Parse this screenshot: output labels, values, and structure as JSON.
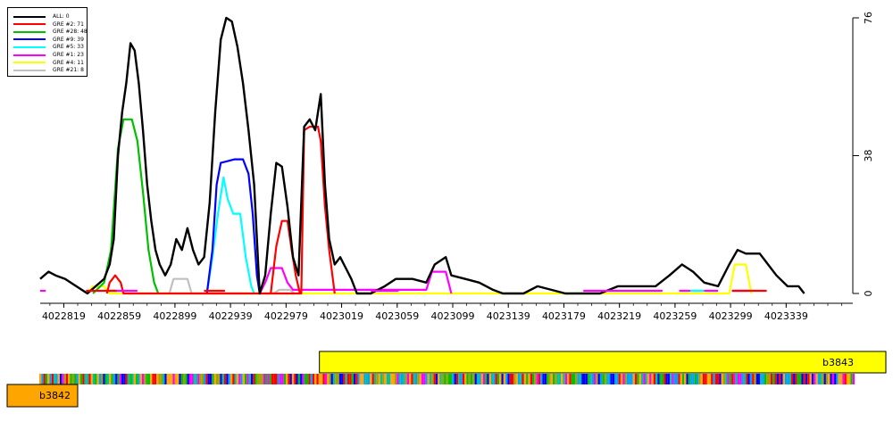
{
  "chart_data": {
    "type": "line",
    "xlim": [
      4022802,
      4023387
    ],
    "ylim": [
      0,
      76
    ],
    "x_ticks": [
      4022819,
      4022859,
      4022899,
      4022939,
      4022979,
      4023019,
      4023059,
      4023099,
      4023139,
      4023179,
      4023219,
      4023259,
      4023299,
      4023339
    ],
    "y_ticks": [
      0,
      38,
      76
    ],
    "y_axis_side": "right",
    "grid": false,
    "legend_position": "top-left",
    "series": [
      {
        "name": "ALL: 0",
        "color": "#000000",
        "points": [
          [
            4022802,
            4
          ],
          [
            4022808,
            6
          ],
          [
            4022813,
            5
          ],
          [
            4022820,
            4
          ],
          [
            4022828,
            2
          ],
          [
            4022836,
            0
          ],
          [
            4022842,
            2
          ],
          [
            4022848,
            4
          ],
          [
            4022852,
            8
          ],
          [
            4022855,
            15
          ],
          [
            4022858,
            38
          ],
          [
            4022861,
            50
          ],
          [
            4022864,
            58
          ],
          [
            4022867,
            69
          ],
          [
            4022870,
            67
          ],
          [
            4022873,
            58
          ],
          [
            4022876,
            45
          ],
          [
            4022879,
            30
          ],
          [
            4022882,
            20
          ],
          [
            4022885,
            12
          ],
          [
            4022888,
            8
          ],
          [
            4022892,
            5
          ],
          [
            4022896,
            8
          ],
          [
            4022900,
            15
          ],
          [
            4022904,
            12
          ],
          [
            4022908,
            18
          ],
          [
            4022912,
            12
          ],
          [
            4022916,
            8
          ],
          [
            4022920,
            10
          ],
          [
            4022924,
            25
          ],
          [
            4022928,
            50
          ],
          [
            4022932,
            70
          ],
          [
            4022936,
            76
          ],
          [
            4022940,
            75
          ],
          [
            4022944,
            68
          ],
          [
            4022948,
            58
          ],
          [
            4022952,
            45
          ],
          [
            4022956,
            30
          ],
          [
            4022960,
            0
          ],
          [
            4022964,
            5
          ],
          [
            4022968,
            22
          ],
          [
            4022972,
            36
          ],
          [
            4022976,
            35
          ],
          [
            4022980,
            24
          ],
          [
            4022984,
            10
          ],
          [
            4022988,
            5
          ],
          [
            4022992,
            46
          ],
          [
            4022996,
            48
          ],
          [
            4023000,
            45
          ],
          [
            4023004,
            55
          ],
          [
            4023007,
            30
          ],
          [
            4023010,
            15
          ],
          [
            4023014,
            8
          ],
          [
            4023018,
            10
          ],
          [
            4023022,
            7
          ],
          [
            4023026,
            4
          ],
          [
            4023030,
            0
          ],
          [
            4023040,
            0
          ],
          [
            4023050,
            2
          ],
          [
            4023058,
            4
          ],
          [
            4023070,
            4
          ],
          [
            4023080,
            3
          ],
          [
            4023086,
            8
          ],
          [
            4023094,
            10
          ],
          [
            4023098,
            5
          ],
          [
            4023108,
            4
          ],
          [
            4023118,
            3
          ],
          [
            4023128,
            1
          ],
          [
            4023135,
            0
          ],
          [
            4023150,
            0
          ],
          [
            4023160,
            2
          ],
          [
            4023170,
            1
          ],
          [
            4023180,
            0
          ],
          [
            4023205,
            0
          ],
          [
            4023218,
            2
          ],
          [
            4023232,
            2
          ],
          [
            4023245,
            2
          ],
          [
            4023255,
            5
          ],
          [
            4023264,
            8
          ],
          [
            4023272,
            6
          ],
          [
            4023280,
            3
          ],
          [
            4023290,
            2
          ],
          [
            4023298,
            8
          ],
          [
            4023304,
            12
          ],
          [
            4023310,
            11
          ],
          [
            4023320,
            11
          ],
          [
            4023326,
            8
          ],
          [
            4023332,
            5
          ],
          [
            4023340,
            2
          ],
          [
            4023348,
            2
          ],
          [
            4023352,
            0
          ]
        ]
      },
      {
        "name": "GRE #2: 71",
        "color": "#ff0000",
        "points": [
          [
            4022850,
            0
          ],
          [
            4022852,
            3
          ],
          [
            4022856,
            5
          ],
          [
            4022860,
            3
          ],
          [
            4022862,
            0
          ],
          [
            4022990,
            0
          ],
          [
            4022992,
            45
          ],
          [
            4022996,
            46
          ],
          [
            4023002,
            46
          ],
          [
            4023004,
            42
          ],
          [
            4023007,
            24
          ],
          [
            4023010,
            12
          ],
          [
            4023014,
            0
          ],
          [
            4022968,
            0
          ],
          [
            4022972,
            13
          ],
          [
            4022976,
            20
          ],
          [
            4022980,
            20
          ],
          [
            4022983,
            12
          ],
          [
            4022986,
            5
          ],
          [
            4022989,
            0
          ]
        ]
      },
      {
        "name": "GRE #28: 48",
        "color": "#00c000",
        "points": [
          [
            4022840,
            0
          ],
          [
            4022848,
            3
          ],
          [
            4022853,
            12
          ],
          [
            4022858,
            40
          ],
          [
            4022862,
            48
          ],
          [
            4022868,
            48
          ],
          [
            4022872,
            42
          ],
          [
            4022876,
            28
          ],
          [
            4022880,
            12
          ],
          [
            4022884,
            3
          ],
          [
            4022887,
            0
          ]
        ]
      },
      {
        "name": "GRE #9: 39",
        "color": "#0000ff",
        "points": [
          [
            4022922,
            0
          ],
          [
            4022926,
            12
          ],
          [
            4022929,
            30
          ],
          [
            4022932,
            36
          ],
          [
            4022942,
            37
          ],
          [
            4022948,
            37
          ],
          [
            4022952,
            33
          ],
          [
            4022955,
            22
          ],
          [
            4022958,
            5
          ],
          [
            4022960,
            0
          ]
        ]
      },
      {
        "name": "GRE #5: 33",
        "color": "#00ffff",
        "points": [
          [
            4022922,
            0
          ],
          [
            4022926,
            10
          ],
          [
            4022930,
            22
          ],
          [
            4022934,
            32
          ],
          [
            4022937,
            26
          ],
          [
            4022941,
            22
          ],
          [
            4022946,
            22
          ],
          [
            4022950,
            10
          ],
          [
            4022954,
            2
          ],
          [
            4022956,
            0
          ]
        ]
      },
      {
        "name": "GRE #1: 23",
        "color": "#ff00ff",
        "points": [
          [
            4022960,
            0
          ],
          [
            4022964,
            3
          ],
          [
            4022968,
            7
          ],
          [
            4022976,
            7
          ],
          [
            4022980,
            3
          ],
          [
            4022984,
            1
          ],
          [
            4022988,
            1
          ],
          [
            4023080,
            1
          ],
          [
            4023084,
            6
          ],
          [
            4023094,
            6
          ],
          [
            4023098,
            0
          ]
        ]
      },
      {
        "name": "GRE #4: 11",
        "color": "#ffff00",
        "points": [
          [
            4022836,
            0
          ],
          [
            4022840,
            2
          ],
          [
            4022848,
            2
          ],
          [
            4022852,
            0
          ],
          [
            4023298,
            0
          ],
          [
            4023302,
            8
          ],
          [
            4023310,
            8
          ],
          [
            4023314,
            0
          ]
        ]
      },
      {
        "name": "GRE #21: 8",
        "color": "#c0c0c0",
        "points": [
          [
            4022895,
            0
          ],
          [
            4022898,
            4
          ],
          [
            4022908,
            4
          ],
          [
            4022911,
            0
          ],
          [
            4022970,
            0
          ],
          [
            4022974,
            1
          ],
          [
            4022982,
            1
          ],
          [
            4022985,
            0
          ]
        ]
      }
    ],
    "baseline_segments": [
      {
        "color": "#ff00ff",
        "ranges": [
          [
            4022802,
            4022806
          ],
          [
            4022852,
            4022872
          ],
          [
            4023040,
            4023060
          ],
          [
            4023193,
            4023250
          ],
          [
            4023262,
            4023290
          ],
          [
            4023300,
            4023312
          ]
        ]
      },
      {
        "color": "#ff0000",
        "ranges": [
          [
            4022835,
            4022857
          ],
          [
            4022920,
            4022935
          ],
          [
            4023300,
            4023325
          ]
        ]
      },
      {
        "color": "#00ffff",
        "ranges": [
          [
            4023270,
            4023280
          ]
        ]
      }
    ]
  },
  "genes": [
    {
      "name": "b3843",
      "color": "#ffff00",
      "start": 4023003,
      "end": 4023387
    },
    {
      "name": "b3842",
      "color": "#ffa500",
      "start": 4022802,
      "end": 4022838
    }
  ],
  "sequence_track": {
    "colors": [
      "#ff0000",
      "#00c000",
      "#0000ff",
      "#ffa500",
      "#00a0ff",
      "#a0a000",
      "#ff00ff",
      "#00c0a0"
    ]
  }
}
